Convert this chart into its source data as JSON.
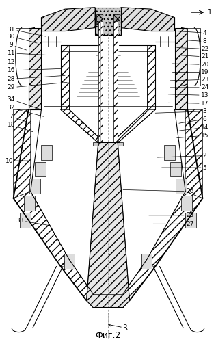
{
  "title": "Фиг.2",
  "label_R": "R",
  "bg_color": "#ffffff",
  "line_color": "#000000",
  "fig_width": 3.16,
  "fig_height": 5.0,
  "dpi": 100,
  "lw_thick": 1.3,
  "lw_med": 0.8,
  "lw_thin": 0.5,
  "font_size_label": 6.5,
  "font_size_caption": 9
}
